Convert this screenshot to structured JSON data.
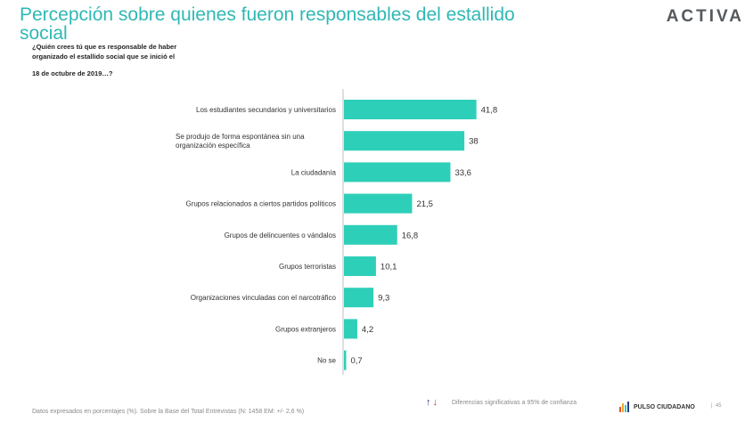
{
  "header": {
    "title": "Percepción sobre quienes fueron responsables del estallido social",
    "logo": "ACTIVA"
  },
  "question": {
    "line1": "¿Quién crees tú que es responsable de haber",
    "line2": "organizado el estallido social que se inició el",
    "line3": "18 de octubre de 2019…?"
  },
  "chart_data": {
    "type": "bar",
    "orientation": "horizontal",
    "categories": [
      "Los estudiantes secundarios y universitarios",
      "Se produjo de forma espontánea sin una organización específica",
      "La ciudadanía",
      "Grupos relacionados a ciertos partidos políticos",
      "Grupos de delincuentes o vándalos",
      "Grupos terroristas",
      "Organizaciones vinculadas con el narcotráfico",
      "Grupos extranjeros",
      "No se"
    ],
    "category_lines": [
      [
        "Los estudiantes secundarios y universitarios"
      ],
      [
        "Se produjo de forma espontánea sin una",
        "organización específica"
      ],
      [
        "La ciudadanía"
      ],
      [
        "Grupos relacionados a ciertos partidos políticos"
      ],
      [
        "Grupos de delincuentes o vándalos"
      ],
      [
        "Grupos terroristas"
      ],
      [
        "Organizaciones vinculadas con el narcotráfico"
      ],
      [
        "Grupos extranjeros"
      ],
      [
        "No se"
      ]
    ],
    "values": [
      41.8,
      38,
      33.6,
      21.5,
      16.8,
      10.1,
      9.3,
      4.2,
      0.7
    ],
    "value_labels": [
      "41,8",
      "38",
      "33,6",
      "21,5",
      "16,8",
      "10,1",
      "9,3",
      "4,2",
      "0,7"
    ],
    "xlim": [
      0,
      45
    ],
    "bar_color": "#2ecfb8",
    "grid": false,
    "legend": false
  },
  "footer": {
    "note": "Datos expresados en porcentajes (%). Sobre la Base del Total Entrevistas (N: 1458  EM: +/- 2,6 %)",
    "legend_up": "↑",
    "legend_down": "↓",
    "legend_text": "Diferencias  significativas a 95% de confianza",
    "brand": "PULSO CIUDADANO",
    "separator": "|",
    "page": "45"
  },
  "colors": {
    "title": "#2fb8b5",
    "bar": "#2ecfb8",
    "arrow_up": "#2d3a8c",
    "arrow_down": "#d0312d"
  }
}
